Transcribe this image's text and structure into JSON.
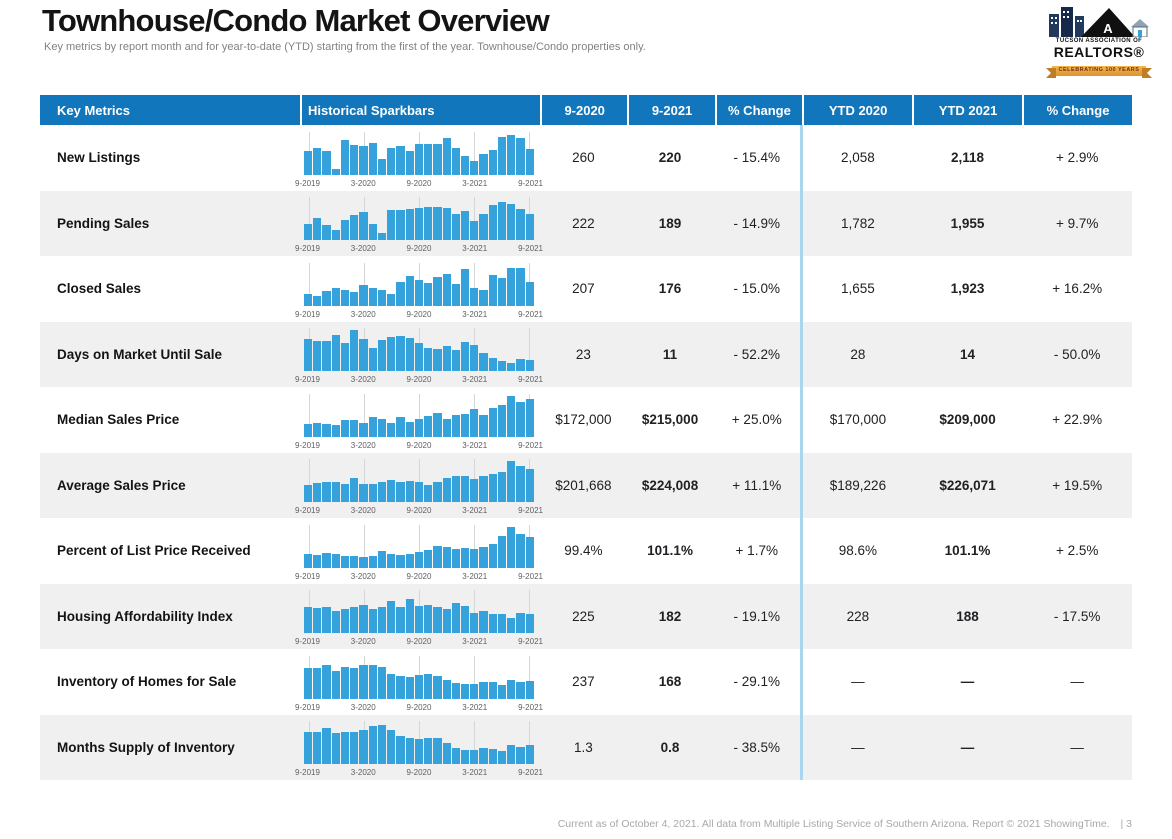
{
  "page": {
    "title": "Townhouse/Condo Market Overview",
    "subtitle": "Key metrics by report month and for year-to-date (YTD) starting from the first of the year. Townhouse/Condo properties only.",
    "footer": "Current as of October 4, 2021. All data from Multiple Listing Service of Southern Arizona. Report © 2021 ShowingTime.",
    "page_number": "| 3"
  },
  "logo": {
    "org_line": "TUCSON ASSOCIATION OF",
    "org_name": "REALTORS®",
    "banner": "CELEBRATING 100 YEARS"
  },
  "colors": {
    "header_blue": "#1176BC",
    "bar_blue": "#35A2DB",
    "row_alt": "#F0F0F0",
    "group_divider": "#A9D6EF"
  },
  "table": {
    "headers": [
      "Key Metrics",
      "Historical Sparkbars",
      "9-2020",
      "9-2021",
      "% Change",
      "YTD 2020",
      "YTD 2021",
      "% Change"
    ],
    "axis_labels": [
      "9-2019",
      "3-2020",
      "9-2020",
      "3-2021",
      "9-2021"
    ],
    "rows": [
      {
        "label": "New Listings",
        "values": [
          "260",
          "220",
          "- 15.4%",
          "2,058",
          "2,118",
          "+ 2.9%"
        ],
        "sparkbar": [
          0.55,
          0.63,
          0.55,
          0.13,
          0.8,
          0.7,
          0.66,
          0.74,
          0.36,
          0.62,
          0.68,
          0.55,
          0.72,
          0.71,
          0.72,
          0.86,
          0.62,
          0.43,
          0.33,
          0.48,
          0.58,
          0.88,
          0.93,
          0.85,
          0.6
        ]
      },
      {
        "label": "Pending Sales",
        "values": [
          "222",
          "189",
          "- 14.9%",
          "1,782",
          "1,955",
          "+ 9.7%"
        ],
        "sparkbar": [
          0.38,
          0.52,
          0.35,
          0.25,
          0.48,
          0.58,
          0.65,
          0.38,
          0.18,
          0.7,
          0.7,
          0.72,
          0.75,
          0.78,
          0.78,
          0.75,
          0.62,
          0.68,
          0.45,
          0.6,
          0.82,
          0.9,
          0.85,
          0.72,
          0.62
        ]
      },
      {
        "label": "Closed Sales",
        "values": [
          "207",
          "176",
          "- 15.0%",
          "1,655",
          "1,923",
          "+ 16.2%"
        ],
        "sparkbar": [
          0.28,
          0.22,
          0.35,
          0.42,
          0.36,
          0.33,
          0.48,
          0.42,
          0.36,
          0.28,
          0.55,
          0.7,
          0.6,
          0.52,
          0.68,
          0.75,
          0.5,
          0.85,
          0.42,
          0.36,
          0.72,
          0.65,
          0.88,
          0.88,
          0.55
        ]
      },
      {
        "label": "Days on Market Until Sale",
        "values": [
          "23",
          "11",
          "- 52.2%",
          "28",
          "14",
          "- 50.0%"
        ],
        "sparkbar": [
          0.75,
          0.7,
          0.7,
          0.85,
          0.65,
          0.95,
          0.75,
          0.55,
          0.72,
          0.8,
          0.82,
          0.78,
          0.65,
          0.55,
          0.52,
          0.58,
          0.5,
          0.68,
          0.6,
          0.42,
          0.3,
          0.25,
          0.2,
          0.28,
          0.26
        ]
      },
      {
        "label": "Median Sales Price",
        "values": [
          "$172,000",
          "$215,000",
          "+ 25.0%",
          "$170,000",
          "$209,000",
          "+ 22.9%"
        ],
        "sparkbar": [
          0.3,
          0.33,
          0.3,
          0.28,
          0.38,
          0.4,
          0.32,
          0.45,
          0.42,
          0.33,
          0.45,
          0.35,
          0.42,
          0.48,
          0.55,
          0.42,
          0.5,
          0.52,
          0.65,
          0.5,
          0.68,
          0.75,
          0.95,
          0.82,
          0.88
        ]
      },
      {
        "label": "Average Sales Price",
        "values": [
          "$201,668",
          "$224,008",
          "+ 11.1%",
          "$189,226",
          "$226,071",
          "+ 19.5%"
        ],
        "sparkbar": [
          0.4,
          0.44,
          0.46,
          0.46,
          0.42,
          0.56,
          0.43,
          0.43,
          0.46,
          0.52,
          0.48,
          0.5,
          0.46,
          0.4,
          0.48,
          0.56,
          0.62,
          0.6,
          0.55,
          0.62,
          0.66,
          0.7,
          0.95,
          0.85,
          0.78
        ]
      },
      {
        "label": "Percent of List Price Received",
        "values": [
          "99.4%",
          "101.1%",
          "+ 1.7%",
          "98.6%",
          "101.1%",
          "+ 2.5%"
        ],
        "sparkbar": [
          0.32,
          0.3,
          0.35,
          0.33,
          0.28,
          0.27,
          0.26,
          0.28,
          0.4,
          0.32,
          0.3,
          0.32,
          0.36,
          0.42,
          0.5,
          0.48,
          0.44,
          0.46,
          0.44,
          0.48,
          0.55,
          0.75,
          0.95,
          0.78,
          0.72
        ]
      },
      {
        "label": "Housing Affordability Index",
        "values": [
          "225",
          "182",
          "- 19.1%",
          "228",
          "188",
          "- 17.5%"
        ],
        "sparkbar": [
          0.62,
          0.58,
          0.6,
          0.52,
          0.56,
          0.62,
          0.66,
          0.56,
          0.6,
          0.74,
          0.62,
          0.8,
          0.64,
          0.66,
          0.6,
          0.56,
          0.7,
          0.64,
          0.46,
          0.52,
          0.44,
          0.44,
          0.36,
          0.48,
          0.44
        ]
      },
      {
        "label": "Inventory of Homes for Sale",
        "values": [
          "237",
          "168",
          "- 29.1%",
          "—",
          "—",
          "—"
        ],
        "sparkbar": [
          0.72,
          0.72,
          0.78,
          0.64,
          0.74,
          0.72,
          0.78,
          0.78,
          0.74,
          0.58,
          0.52,
          0.5,
          0.56,
          0.58,
          0.52,
          0.44,
          0.36,
          0.34,
          0.34,
          0.38,
          0.38,
          0.32,
          0.44,
          0.38,
          0.42
        ]
      },
      {
        "label": "Months Supply of Inventory",
        "values": [
          "1.3",
          "0.8",
          "- 38.5%",
          "—",
          "—",
          "—"
        ],
        "sparkbar": [
          0.76,
          0.76,
          0.84,
          0.72,
          0.76,
          0.76,
          0.8,
          0.88,
          0.92,
          0.8,
          0.66,
          0.6,
          0.58,
          0.62,
          0.6,
          0.5,
          0.38,
          0.34,
          0.34,
          0.38,
          0.36,
          0.32,
          0.44,
          0.4,
          0.44
        ]
      }
    ]
  }
}
